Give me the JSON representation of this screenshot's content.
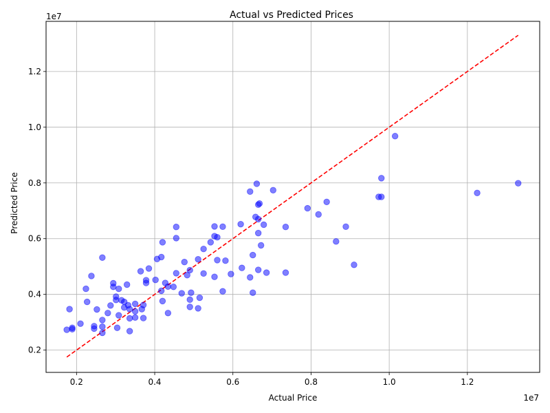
{
  "chart_data": {
    "type": "scatter",
    "title": "Actual vs Predicted Prices",
    "xlabel": "Actual Price",
    "ylabel": "Predicted Price",
    "x_offset_label": "1e7",
    "y_offset_label": "1e7",
    "xlim": [
      1220000.0,
      13850000.0
    ],
    "ylim": [
      1200000.0,
      13800000.0
    ],
    "x_ticks": [
      0.2,
      0.4,
      0.6,
      0.8,
      1.0,
      1.2
    ],
    "y_ticks": [
      0.2,
      0.4,
      0.6,
      0.8,
      1.0,
      1.2
    ],
    "x_tick_scale": 10000000.0,
    "y_tick_scale": 10000000.0,
    "grid": true,
    "point_color": "#0000ff",
    "point_opacity": 0.5,
    "reference_line": {
      "style": "dashed",
      "color": "#ff0000",
      "from": [
        1750000.0,
        1750000.0
      ],
      "to": [
        13300000.0,
        13300000.0
      ]
    },
    "series": [
      {
        "points": [
          [
            1750000.0,
            2730000.0
          ],
          [
            1820000.0,
            3470000.0
          ],
          [
            1890000.0,
            2800000.0
          ],
          [
            1890000.0,
            2750000.0
          ],
          [
            2100000.0,
            2950000.0
          ],
          [
            2240000.0,
            4200000.0
          ],
          [
            2270000.0,
            3730000.0
          ],
          [
            2380000.0,
            4660000.0
          ],
          [
            2450000.0,
            2860000.0
          ],
          [
            2450000.0,
            2770000.0
          ],
          [
            2520000.0,
            3460000.0
          ],
          [
            2660000.0,
            5320000.0
          ],
          [
            2660000.0,
            3080000.0
          ],
          [
            2660000.0,
            2840000.0
          ],
          [
            2660000.0,
            2620000.0
          ],
          [
            2800000.0,
            3330000.0
          ],
          [
            2870000.0,
            3600000.0
          ],
          [
            2940000.0,
            4400000.0
          ],
          [
            2940000.0,
            4270000.0
          ],
          [
            3010000.0,
            3920000.0
          ],
          [
            3010000.0,
            3800000.0
          ],
          [
            3040000.0,
            2800000.0
          ],
          [
            3080000.0,
            4200000.0
          ],
          [
            3080000.0,
            3250000.0
          ],
          [
            3150000.0,
            3790000.0
          ],
          [
            3220000.0,
            3730000.0
          ],
          [
            3220000.0,
            3530000.0
          ],
          [
            3290000.0,
            4350000.0
          ],
          [
            3320000.0,
            3610000.0
          ],
          [
            3360000.0,
            3470000.0
          ],
          [
            3360000.0,
            3140000.0
          ],
          [
            3360000.0,
            2680000.0
          ],
          [
            3500000.0,
            3660000.0
          ],
          [
            3500000.0,
            3390000.0
          ],
          [
            3500000.0,
            3170000.0
          ],
          [
            3640000.0,
            4830000.0
          ],
          [
            3670000.0,
            3470000.0
          ],
          [
            3710000.0,
            3620000.0
          ],
          [
            3710000.0,
            3150000.0
          ],
          [
            3780000.0,
            4510000.0
          ],
          [
            3780000.0,
            4410000.0
          ],
          [
            3850000.0,
            4930000.0
          ],
          [
            4020000.0,
            4520000.0
          ],
          [
            4060000.0,
            5270000.0
          ],
          [
            4170000.0,
            5340000.0
          ],
          [
            4170000.0,
            4130000.0
          ],
          [
            4200000.0,
            5870000.0
          ],
          [
            4200000.0,
            3760000.0
          ],
          [
            4270000.0,
            4410000.0
          ],
          [
            4340000.0,
            4280000.0
          ],
          [
            4340000.0,
            3330000.0
          ],
          [
            4480000.0,
            4270000.0
          ],
          [
            4550000.0,
            6420000.0
          ],
          [
            4550000.0,
            6020000.0
          ],
          [
            4550000.0,
            4760000.0
          ],
          [
            4690000.0,
            4040000.0
          ],
          [
            4760000.0,
            5160000.0
          ],
          [
            4830000.0,
            4690000.0
          ],
          [
            4900000.0,
            4870000.0
          ],
          [
            4900000.0,
            3810000.0
          ],
          [
            4900000.0,
            3550000.0
          ],
          [
            4930000.0,
            4060000.0
          ],
          [
            5110000.0,
            5260000.0
          ],
          [
            5110000.0,
            3500000.0
          ],
          [
            5150000.0,
            3880000.0
          ],
          [
            5250000.0,
            5630000.0
          ],
          [
            5250000.0,
            4750000.0
          ],
          [
            5430000.0,
            5870000.0
          ],
          [
            5530000.0,
            6440000.0
          ],
          [
            5530000.0,
            6090000.0
          ],
          [
            5530000.0,
            4630000.0
          ],
          [
            5600000.0,
            6050000.0
          ],
          [
            5600000.0,
            5230000.0
          ],
          [
            5740000.0,
            6430000.0
          ],
          [
            5740000.0,
            4110000.0
          ],
          [
            5810000.0,
            5210000.0
          ],
          [
            5950000.0,
            4730000.0
          ],
          [
            6200000.0,
            6520000.0
          ],
          [
            6230000.0,
            4950000.0
          ],
          [
            6440000.0,
            7690000.0
          ],
          [
            6440000.0,
            4610000.0
          ],
          [
            6510000.0,
            5410000.0
          ],
          [
            6510000.0,
            4060000.0
          ],
          [
            6580000.0,
            6780000.0
          ],
          [
            6610000.0,
            7970000.0
          ],
          [
            6650000.0,
            7220000.0
          ],
          [
            6650000.0,
            6700000.0
          ],
          [
            6650000.0,
            6200000.0
          ],
          [
            6650000.0,
            4880000.0
          ],
          [
            6680000.0,
            7260000.0
          ],
          [
            6720000.0,
            5760000.0
          ],
          [
            6790000.0,
            6500000.0
          ],
          [
            6860000.0,
            4780000.0
          ],
          [
            7030000.0,
            7740000.0
          ],
          [
            7350000.0,
            6420000.0
          ],
          [
            7350000.0,
            4780000.0
          ],
          [
            7910000.0,
            7090000.0
          ],
          [
            8190000.0,
            6870000.0
          ],
          [
            8400000.0,
            7320000.0
          ],
          [
            8640000.0,
            5900000.0
          ],
          [
            8890000.0,
            6430000.0
          ],
          [
            9100000.0,
            5060000.0
          ],
          [
            9730000.0,
            7500000.0
          ],
          [
            9800000.0,
            8170000.0
          ],
          [
            9800000.0,
            7500000.0
          ],
          [
            10150000.0,
            9680000.0
          ],
          [
            12250000.0,
            7640000.0
          ],
          [
            13300000.0,
            7990000.0
          ]
        ]
      }
    ]
  }
}
